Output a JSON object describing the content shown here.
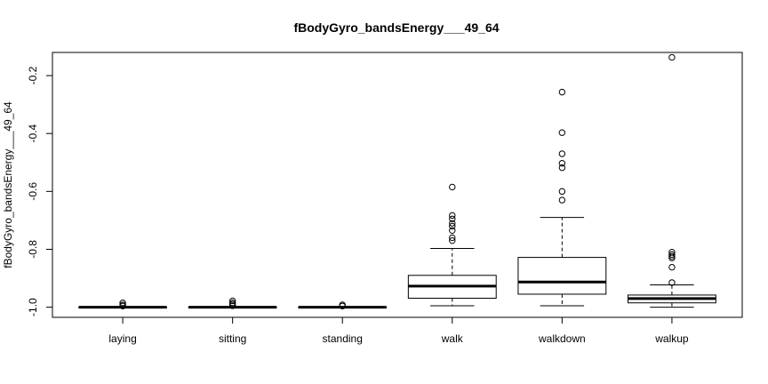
{
  "chart_data": {
    "type": "boxplot",
    "title": "fBodyGyro_bandsEnergy___49_64",
    "xlabel": "",
    "ylabel": "fBodyGyro_bandsEnergy___49_64",
    "ylim": [
      -1.035,
      -0.12
    ],
    "yticks": [
      -1.0,
      -0.8,
      -0.6,
      -0.4,
      -0.2
    ],
    "ytick_labels": [
      "-1.0",
      "-0.8",
      "-0.6",
      "-0.4",
      "-0.2"
    ],
    "categories": [
      "laying",
      "sitting",
      "standing",
      "walk",
      "walkdown",
      "walkup"
    ],
    "boxes": [
      {
        "name": "laying",
        "whisker_low": -1.0,
        "q1": -1.0,
        "median": -1.0,
        "q3": -1.0,
        "whisker_high": -1.0,
        "outliers": [
          -0.985,
          -0.992,
          -0.996
        ]
      },
      {
        "name": "sitting",
        "whisker_low": -1.0,
        "q1": -1.0,
        "median": -1.0,
        "q3": -1.0,
        "whisker_high": -1.0,
        "outliers": [
          -0.978,
          -0.985,
          -0.99,
          -0.995
        ]
      },
      {
        "name": "standing",
        "whisker_low": -1.0,
        "q1": -1.0,
        "median": -1.0,
        "q3": -1.0,
        "whisker_high": -1.0,
        "outliers": [
          -0.992,
          -0.996
        ]
      },
      {
        "name": "walk",
        "whisker_low": -0.995,
        "q1": -0.969,
        "median": -0.927,
        "q3": -0.89,
        "whisker_high": -0.797,
        "outliers": [
          -0.585,
          -0.683,
          -0.695,
          -0.71,
          -0.72,
          -0.735,
          -0.76,
          -0.77
        ]
      },
      {
        "name": "walkdown",
        "whisker_low": -0.995,
        "q1": -0.955,
        "median": -0.913,
        "q3": -0.828,
        "whisker_high": -0.69,
        "outliers": [
          -0.257,
          -0.397,
          -0.47,
          -0.503,
          -0.518,
          -0.6,
          -0.63
        ]
      },
      {
        "name": "walkup",
        "whisker_low": -1.0,
        "q1": -0.985,
        "median": -0.97,
        "q3": -0.958,
        "whisker_high": -0.923,
        "outliers": [
          -0.137,
          -0.81,
          -0.818,
          -0.824,
          -0.83,
          -0.862,
          -0.915
        ]
      }
    ]
  }
}
